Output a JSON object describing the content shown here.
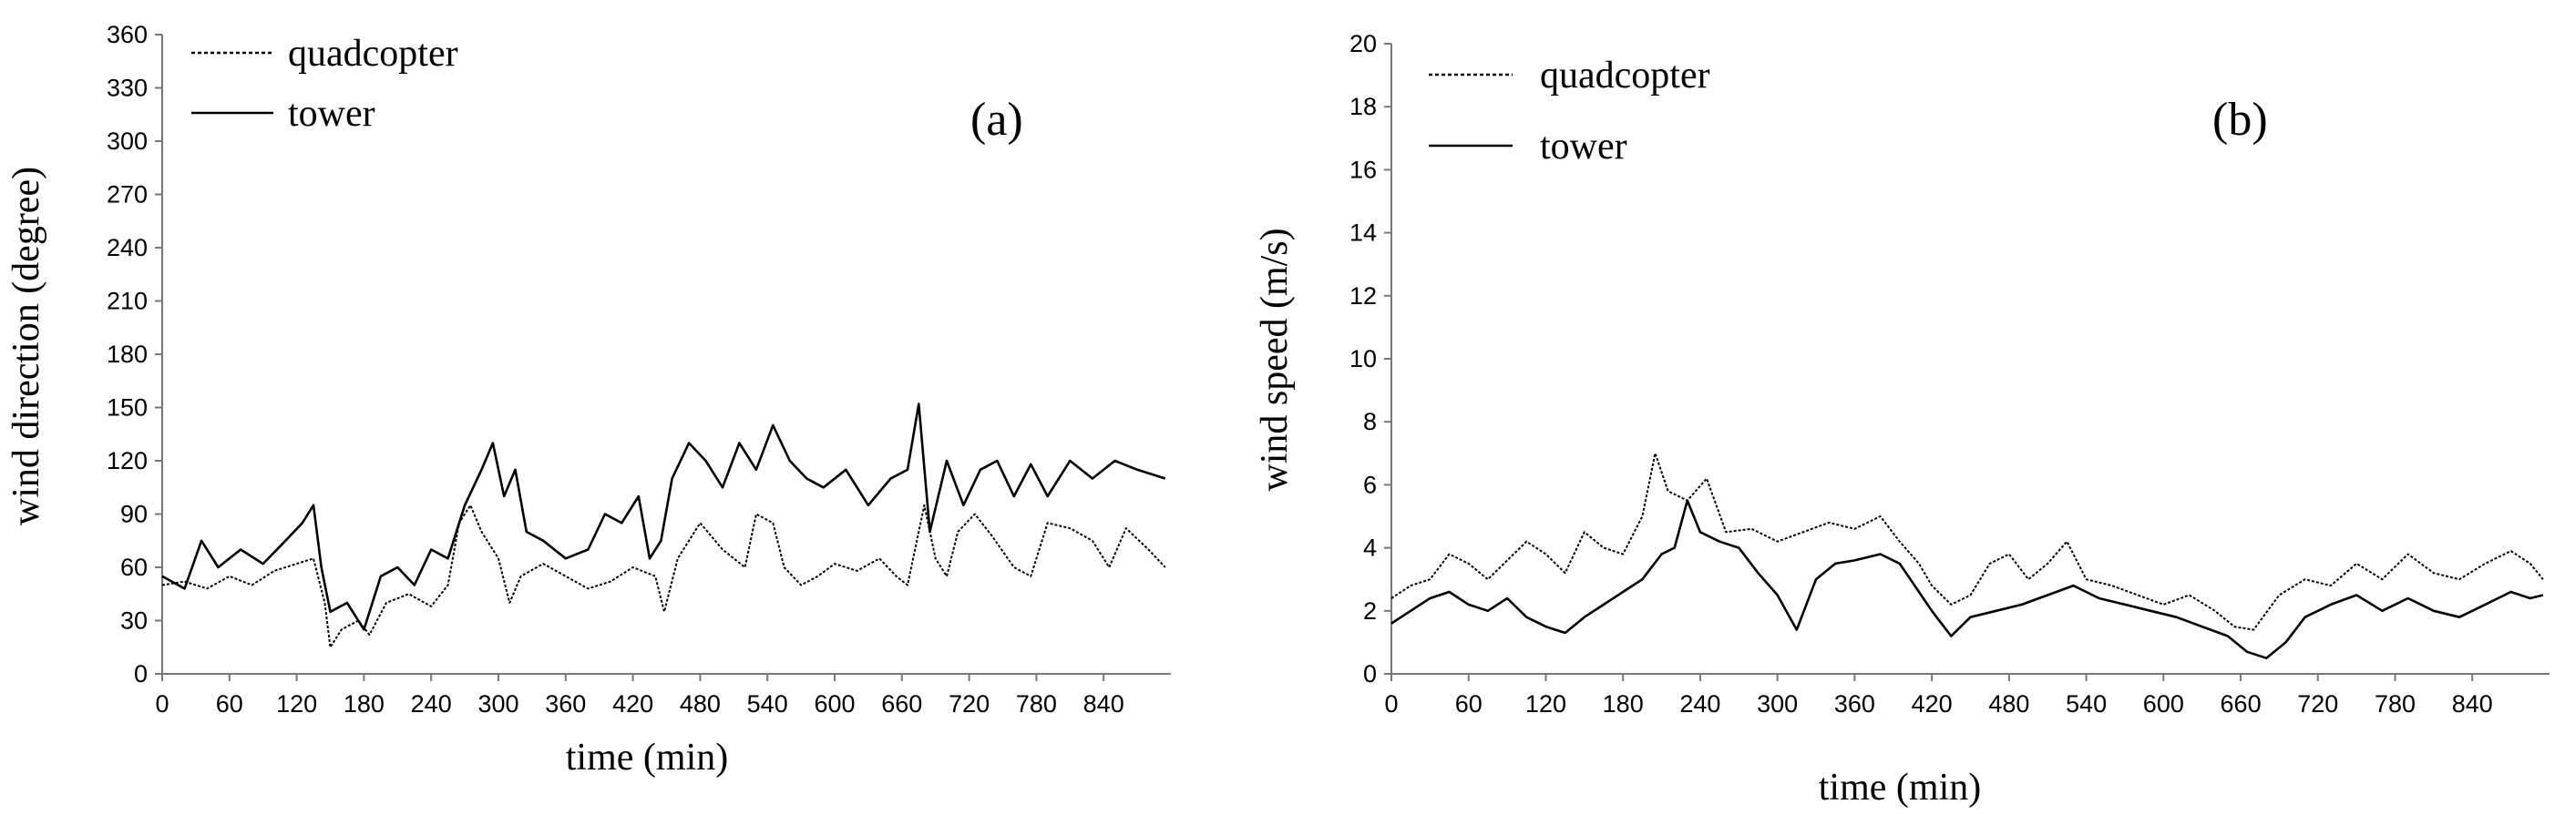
{
  "chart_data": [
    {
      "type": "line",
      "panel_label": "(a)",
      "xlabel": "time (min)",
      "ylabel": "wind direction (degree)",
      "xlim": [
        0,
        900
      ],
      "ylim": [
        0,
        360
      ],
      "x_ticks": [
        0,
        60,
        120,
        180,
        240,
        300,
        360,
        420,
        480,
        540,
        600,
        660,
        720,
        780,
        840
      ],
      "y_ticks": [
        0,
        30,
        60,
        90,
        120,
        150,
        180,
        210,
        240,
        270,
        300,
        330,
        360
      ],
      "legend_position": "top-left",
      "series": [
        {
          "name": "quadcopter",
          "style": "dotted",
          "points": [
            [
              0,
              50
            ],
            [
              20,
              52
            ],
            [
              40,
              48
            ],
            [
              60,
              55
            ],
            [
              80,
              50
            ],
            [
              100,
              58
            ],
            [
              120,
              62
            ],
            [
              135,
              65
            ],
            [
              145,
              40
            ],
            [
              150,
              15
            ],
            [
              160,
              25
            ],
            [
              175,
              30
            ],
            [
              185,
              22
            ],
            [
              200,
              40
            ],
            [
              220,
              45
            ],
            [
              240,
              38
            ],
            [
              255,
              50
            ],
            [
              265,
              85
            ],
            [
              275,
              95
            ],
            [
              285,
              80
            ],
            [
              300,
              65
            ],
            [
              310,
              40
            ],
            [
              320,
              55
            ],
            [
              340,
              62
            ],
            [
              360,
              55
            ],
            [
              380,
              48
            ],
            [
              400,
              52
            ],
            [
              420,
              60
            ],
            [
              440,
              55
            ],
            [
              448,
              35
            ],
            [
              460,
              65
            ],
            [
              480,
              85
            ],
            [
              500,
              70
            ],
            [
              520,
              60
            ],
            [
              530,
              90
            ],
            [
              545,
              85
            ],
            [
              555,
              60
            ],
            [
              570,
              50
            ],
            [
              585,
              55
            ],
            [
              600,
              62
            ],
            [
              620,
              58
            ],
            [
              640,
              65
            ],
            [
              655,
              55
            ],
            [
              665,
              50
            ],
            [
              680,
              95
            ],
            [
              690,
              65
            ],
            [
              700,
              55
            ],
            [
              710,
              80
            ],
            [
              725,
              90
            ],
            [
              740,
              78
            ],
            [
              760,
              60
            ],
            [
              775,
              55
            ],
            [
              790,
              85
            ],
            [
              810,
              82
            ],
            [
              830,
              75
            ],
            [
              845,
              60
            ],
            [
              860,
              82
            ],
            [
              880,
              70
            ],
            [
              895,
              60
            ]
          ]
        },
        {
          "name": "tower",
          "style": "solid",
          "points": [
            [
              0,
              55
            ],
            [
              20,
              48
            ],
            [
              35,
              75
            ],
            [
              50,
              60
            ],
            [
              70,
              70
            ],
            [
              90,
              62
            ],
            [
              110,
              75
            ],
            [
              125,
              85
            ],
            [
              135,
              95
            ],
            [
              142,
              60
            ],
            [
              150,
              35
            ],
            [
              165,
              40
            ],
            [
              180,
              25
            ],
            [
              195,
              55
            ],
            [
              210,
              60
            ],
            [
              225,
              50
            ],
            [
              240,
              70
            ],
            [
              255,
              65
            ],
            [
              270,
              95
            ],
            [
              285,
              115
            ],
            [
              295,
              130
            ],
            [
              305,
              100
            ],
            [
              315,
              115
            ],
            [
              325,
              80
            ],
            [
              340,
              75
            ],
            [
              360,
              65
            ],
            [
              380,
              70
            ],
            [
              395,
              90
            ],
            [
              410,
              85
            ],
            [
              425,
              100
            ],
            [
              435,
              65
            ],
            [
              445,
              75
            ],
            [
              455,
              110
            ],
            [
              470,
              130
            ],
            [
              485,
              120
            ],
            [
              500,
              105
            ],
            [
              515,
              130
            ],
            [
              530,
              115
            ],
            [
              545,
              140
            ],
            [
              560,
              120
            ],
            [
              575,
              110
            ],
            [
              590,
              105
            ],
            [
              610,
              115
            ],
            [
              630,
              95
            ],
            [
              650,
              110
            ],
            [
              665,
              115
            ],
            [
              675,
              152
            ],
            [
              685,
              80
            ],
            [
              700,
              120
            ],
            [
              715,
              95
            ],
            [
              730,
              115
            ],
            [
              745,
              120
            ],
            [
              760,
              100
            ],
            [
              775,
              118
            ],
            [
              790,
              100
            ],
            [
              810,
              120
            ],
            [
              830,
              110
            ],
            [
              850,
              120
            ],
            [
              870,
              115
            ],
            [
              895,
              110
            ]
          ]
        }
      ]
    },
    {
      "type": "line",
      "panel_label": "(b)",
      "xlabel": "time (min)",
      "ylabel": "wind speed (m/s)",
      "xlim": [
        0,
        900
      ],
      "ylim": [
        0,
        20
      ],
      "x_ticks": [
        0,
        60,
        120,
        180,
        240,
        300,
        360,
        420,
        480,
        540,
        600,
        660,
        720,
        780,
        840
      ],
      "y_ticks": [
        0,
        2,
        4,
        6,
        8,
        10,
        12,
        14,
        16,
        18,
        20
      ],
      "legend_position": "top-left",
      "series": [
        {
          "name": "quadcopter",
          "style": "dotted",
          "points": [
            [
              0,
              2.4
            ],
            [
              15,
              2.8
            ],
            [
              30,
              3.0
            ],
            [
              45,
              3.8
            ],
            [
              60,
              3.5
            ],
            [
              75,
              3.0
            ],
            [
              90,
              3.6
            ],
            [
              105,
              4.2
            ],
            [
              120,
              3.8
            ],
            [
              135,
              3.2
            ],
            [
              150,
              4.5
            ],
            [
              165,
              4.0
            ],
            [
              180,
              3.8
            ],
            [
              195,
              5.0
            ],
            [
              205,
              7.0
            ],
            [
              215,
              5.8
            ],
            [
              230,
              5.5
            ],
            [
              245,
              6.2
            ],
            [
              260,
              4.5
            ],
            [
              280,
              4.6
            ],
            [
              300,
              4.2
            ],
            [
              320,
              4.5
            ],
            [
              340,
              4.8
            ],
            [
              360,
              4.6
            ],
            [
              380,
              5.0
            ],
            [
              395,
              4.2
            ],
            [
              410,
              3.5
            ],
            [
              420,
              2.8
            ],
            [
              435,
              2.2
            ],
            [
              450,
              2.5
            ],
            [
              465,
              3.5
            ],
            [
              480,
              3.8
            ],
            [
              495,
              3.0
            ],
            [
              510,
              3.5
            ],
            [
              525,
              4.2
            ],
            [
              540,
              3.0
            ],
            [
              560,
              2.8
            ],
            [
              580,
              2.5
            ],
            [
              600,
              2.2
            ],
            [
              620,
              2.5
            ],
            [
              640,
              2.0
            ],
            [
              655,
              1.5
            ],
            [
              670,
              1.4
            ],
            [
              690,
              2.5
            ],
            [
              710,
              3.0
            ],
            [
              730,
              2.8
            ],
            [
              750,
              3.5
            ],
            [
              770,
              3.0
            ],
            [
              790,
              3.8
            ],
            [
              810,
              3.2
            ],
            [
              830,
              3.0
            ],
            [
              850,
              3.5
            ],
            [
              870,
              3.9
            ],
            [
              885,
              3.5
            ],
            [
              895,
              3.0
            ]
          ]
        },
        {
          "name": "tower",
          "style": "solid",
          "points": [
            [
              0,
              1.6
            ],
            [
              15,
              2.0
            ],
            [
              30,
              2.4
            ],
            [
              45,
              2.6
            ],
            [
              60,
              2.2
            ],
            [
              75,
              2.0
            ],
            [
              90,
              2.4
            ],
            [
              105,
              1.8
            ],
            [
              120,
              1.5
            ],
            [
              135,
              1.3
            ],
            [
              150,
              1.8
            ],
            [
              165,
              2.2
            ],
            [
              180,
              2.6
            ],
            [
              195,
              3.0
            ],
            [
              210,
              3.8
            ],
            [
              220,
              4.0
            ],
            [
              230,
              5.5
            ],
            [
              240,
              4.5
            ],
            [
              255,
              4.2
            ],
            [
              270,
              4.0
            ],
            [
              285,
              3.2
            ],
            [
              300,
              2.5
            ],
            [
              315,
              1.4
            ],
            [
              330,
              3.0
            ],
            [
              345,
              3.5
            ],
            [
              360,
              3.6
            ],
            [
              380,
              3.8
            ],
            [
              395,
              3.5
            ],
            [
              410,
              2.6
            ],
            [
              420,
              2.0
            ],
            [
              435,
              1.2
            ],
            [
              450,
              1.8
            ],
            [
              470,
              2.0
            ],
            [
              490,
              2.2
            ],
            [
              510,
              2.5
            ],
            [
              530,
              2.8
            ],
            [
              550,
              2.4
            ],
            [
              570,
              2.2
            ],
            [
              590,
              2.0
            ],
            [
              610,
              1.8
            ],
            [
              630,
              1.5
            ],
            [
              650,
              1.2
            ],
            [
              665,
              0.7
            ],
            [
              680,
              0.5
            ],
            [
              695,
              1.0
            ],
            [
              710,
              1.8
            ],
            [
              730,
              2.2
            ],
            [
              750,
              2.5
            ],
            [
              770,
              2.0
            ],
            [
              790,
              2.4
            ],
            [
              810,
              2.0
            ],
            [
              830,
              1.8
            ],
            [
              850,
              2.2
            ],
            [
              870,
              2.6
            ],
            [
              885,
              2.4
            ],
            [
              895,
              2.5
            ]
          ]
        }
      ]
    }
  ]
}
